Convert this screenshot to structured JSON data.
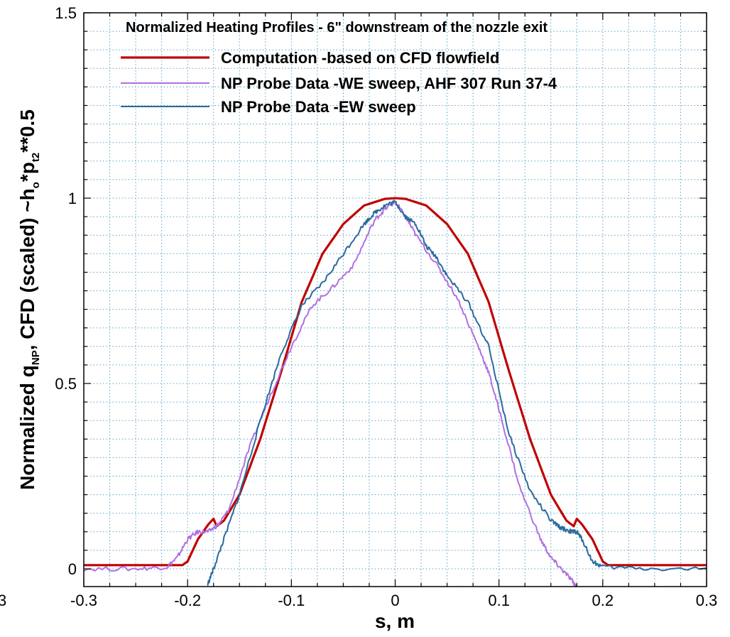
{
  "chart_data": {
    "type": "line",
    "title": "Normalized Heating Profiles - 6\" downstream of the nozzle exit",
    "xlabel": "s, m",
    "ylabel": {
      "prefix": "Normalized q",
      "sub1": "NP",
      "mid": ", CFD (scaled) ~h",
      "sub2": "o",
      "mid2": "*p",
      "sub3": "t2",
      "suffix": "**0.5"
    },
    "xlim": [
      -0.3,
      0.3
    ],
    "ylim": [
      -0.045,
      1.5
    ],
    "xticks": [
      -0.3,
      -0.2,
      -0.1,
      0,
      0.1,
      0.2,
      0.3
    ],
    "xtick_labels": [
      "-0.3",
      "-0.2",
      "-0.1",
      "0",
      "0.1",
      "0.2",
      "0.3"
    ],
    "yticks": [
      0,
      0.5,
      1,
      1.5
    ],
    "ytick_labels": [
      "0",
      "0.5",
      "1",
      "1.5"
    ],
    "left_edge_label": "3",
    "grid": true,
    "legend_position": "top-left",
    "series": [
      {
        "name": "Computation -based on CFD flowfield",
        "color": "#c00000",
        "x": [
          -0.3,
          -0.205,
          -0.2,
          -0.19,
          -0.18,
          -0.175,
          -0.172,
          -0.165,
          -0.15,
          -0.13,
          -0.11,
          -0.09,
          -0.07,
          -0.05,
          -0.03,
          -0.01,
          0,
          0.01,
          0.03,
          0.05,
          0.07,
          0.09,
          0.11,
          0.13,
          0.15,
          0.165,
          0.172,
          0.175,
          0.18,
          0.19,
          0.2,
          0.205,
          0.3
        ],
        "y": [
          0.01,
          0.01,
          0.02,
          0.08,
          0.12,
          0.135,
          0.115,
          0.13,
          0.2,
          0.35,
          0.53,
          0.72,
          0.85,
          0.93,
          0.98,
          0.998,
          1.0,
          0.998,
          0.98,
          0.93,
          0.85,
          0.72,
          0.53,
          0.35,
          0.2,
          0.13,
          0.115,
          0.135,
          0.12,
          0.08,
          0.02,
          0.01,
          0.01
        ]
      },
      {
        "name": "NP Probe Data -WE sweep, AHF 307 Run 37-4",
        "color": "#b070e0",
        "x": [
          -0.3,
          -0.25,
          -0.22,
          -0.21,
          -0.2,
          -0.19,
          -0.18,
          -0.17,
          -0.16,
          -0.14,
          -0.12,
          -0.1,
          -0.08,
          -0.06,
          -0.04,
          -0.02,
          -0.01,
          0,
          0.01,
          0.02,
          0.04,
          0.06,
          0.08,
          0.09,
          0.1,
          0.12,
          0.14,
          0.15,
          0.16,
          0.17,
          0.175
        ],
        "y": [
          0.0,
          0.0,
          0.005,
          0.03,
          0.08,
          0.1,
          0.1,
          0.12,
          0.16,
          0.33,
          0.47,
          0.6,
          0.71,
          0.76,
          0.82,
          0.94,
          0.97,
          0.99,
          0.95,
          0.9,
          0.82,
          0.73,
          0.6,
          0.53,
          0.43,
          0.22,
          0.08,
          0.03,
          0.0,
          -0.03,
          -0.05
        ]
      },
      {
        "name": "NP Probe Data -EW sweep",
        "color": "#2a6a9c",
        "x": [
          -0.181,
          -0.175,
          -0.165,
          -0.15,
          -0.13,
          -0.11,
          -0.09,
          -0.07,
          -0.05,
          -0.03,
          -0.02,
          -0.01,
          0,
          0.01,
          0.02,
          0.03,
          0.04,
          0.05,
          0.07,
          0.09,
          0.11,
          0.13,
          0.15,
          0.16,
          0.17,
          0.175,
          0.18,
          0.19,
          0.2,
          0.25,
          0.3
        ],
        "y": [
          -0.045,
          0.0,
          0.08,
          0.2,
          0.4,
          0.58,
          0.71,
          0.77,
          0.85,
          0.93,
          0.96,
          0.98,
          0.99,
          0.95,
          0.93,
          0.87,
          0.84,
          0.79,
          0.72,
          0.6,
          0.36,
          0.21,
          0.13,
          0.11,
          0.1,
          0.1,
          0.08,
          0.02,
          0.005,
          0.0,
          0.0
        ]
      }
    ]
  }
}
